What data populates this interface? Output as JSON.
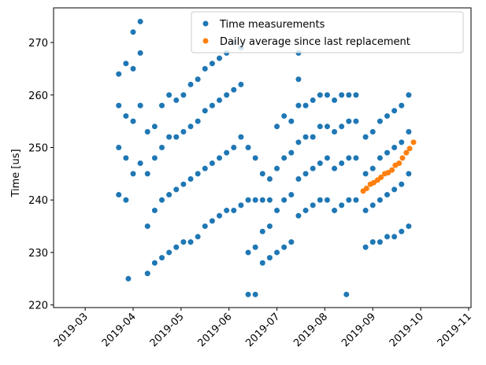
{
  "chart_data": {
    "type": "scatter",
    "y_label": "Time [us]",
    "xlim": [
      2.34,
      11.05
    ],
    "ylim": [
      219.5,
      276.6
    ],
    "xticks": [
      {
        "value": 3,
        "label": "2019-03"
      },
      {
        "value": 4,
        "label": "2019-04"
      },
      {
        "value": 5,
        "label": "2019-05"
      },
      {
        "value": 6,
        "label": "2019-06"
      },
      {
        "value": 7,
        "label": "2019-07"
      },
      {
        "value": 8,
        "label": "2019-08"
      },
      {
        "value": 9,
        "label": "2019-09"
      },
      {
        "value": 10,
        "label": "2019-10"
      },
      {
        "value": 11,
        "label": "2019-11"
      }
    ],
    "yticks": [
      220,
      230,
      240,
      250,
      260,
      270
    ],
    "legend": "upper right",
    "series": [
      {
        "name": "Time measurements",
        "color": "#1f77b4",
        "x": [
          3.7,
          3.7,
          3.7,
          3.7,
          3.85,
          3.85,
          3.85,
          3.85,
          4.0,
          4.0,
          4.0,
          4.0,
          4.15,
          4.15,
          4.15,
          4.15,
          4.3,
          4.3,
          4.3,
          4.3,
          4.45,
          4.45,
          4.45,
          4.45,
          4.6,
          4.6,
          4.6,
          4.6,
          4.75,
          4.75,
          4.75,
          4.75,
          4.9,
          4.9,
          4.9,
          4.9,
          5.05,
          5.05,
          5.05,
          5.05,
          5.2,
          5.2,
          5.2,
          5.2,
          5.35,
          5.35,
          5.35,
          5.35,
          5.5,
          5.5,
          5.5,
          5.5,
          5.65,
          5.65,
          5.65,
          5.65,
          5.8,
          5.8,
          5.8,
          5.8,
          5.95,
          5.95,
          5.95,
          5.95,
          6.1,
          6.1,
          6.1,
          6.1,
          6.25,
          6.25,
          6.25,
          6.25,
          6.4,
          6.4,
          6.4,
          6.4,
          6.55,
          6.55,
          6.55,
          6.55,
          6.7,
          6.7,
          6.7,
          6.7,
          6.85,
          6.85,
          6.85,
          6.85,
          7.0,
          7.0,
          7.0,
          7.0,
          7.15,
          7.15,
          7.15,
          7.15,
          7.3,
          7.3,
          7.3,
          7.3,
          7.45,
          7.45,
          7.45,
          7.45,
          7.6,
          7.6,
          7.6,
          7.6,
          7.75,
          7.75,
          7.75,
          7.75,
          7.9,
          7.9,
          7.9,
          7.9,
          8.05,
          8.05,
          8.05,
          8.05,
          8.2,
          8.2,
          8.2,
          8.2,
          8.35,
          8.35,
          8.35,
          8.35,
          8.5,
          8.5,
          8.5,
          8.5,
          8.65,
          8.65,
          8.65,
          8.65,
          8.85,
          8.85,
          8.85,
          8.85,
          9.0,
          9.0,
          9.0,
          9.0,
          9.15,
          9.15,
          9.15,
          9.15,
          9.3,
          9.3,
          9.3,
          9.3,
          9.45,
          9.45,
          9.45,
          9.45,
          9.6,
          9.6,
          9.6,
          9.6,
          9.75,
          9.75,
          9.75,
          9.75,
          3.9,
          7.45,
          7.45,
          8.45
        ],
        "values": [
          241,
          250,
          258,
          264,
          240,
          248,
          256,
          266,
          245,
          255,
          265,
          272,
          247,
          258,
          268,
          274,
          226,
          235,
          245,
          253,
          228,
          238,
          248,
          254,
          229,
          240,
          250,
          258,
          230,
          241,
          252,
          260,
          231,
          242,
          252,
          259,
          232,
          243,
          253,
          260,
          232,
          244,
          254,
          262,
          233,
          245,
          255,
          263,
          235,
          246,
          257,
          265,
          236,
          247,
          258,
          266,
          237,
          248,
          259,
          267,
          238,
          249,
          260,
          268,
          238,
          250,
          261,
          270,
          239,
          252,
          262,
          269,
          222,
          230,
          240,
          250,
          222,
          231,
          240,
          248,
          228,
          234,
          240,
          245,
          229,
          235,
          240,
          244,
          230,
          238,
          246,
          254,
          231,
          240,
          248,
          256,
          232,
          241,
          249,
          255,
          237,
          244,
          251,
          258,
          238,
          245,
          252,
          258,
          239,
          246,
          252,
          259,
          240,
          247,
          254,
          260,
          240,
          248,
          254,
          260,
          238,
          246,
          253,
          259,
          239,
          247,
          254,
          260,
          240,
          248,
          255,
          260,
          240,
          248,
          255,
          260,
          231,
          238,
          245,
          252,
          232,
          239,
          246,
          253,
          232,
          240,
          248,
          255,
          233,
          241,
          249,
          256,
          233,
          242,
          250,
          257,
          234,
          243,
          251,
          258,
          235,
          245,
          253,
          260,
          225,
          268,
          263,
          222
        ]
      },
      {
        "name": "Daily average since last replacement",
        "color": "#ff7f0e",
        "x": [
          8.8,
          8.87,
          8.95,
          9.02,
          9.1,
          9.17,
          9.25,
          9.32,
          9.4,
          9.47,
          9.55,
          9.62,
          9.7,
          9.77,
          9.85
        ],
        "values": [
          241.7,
          242.2,
          243,
          243.3,
          243.8,
          244.3,
          245,
          245.2,
          245.7,
          246.6,
          247,
          248,
          249,
          249.8,
          251
        ]
      }
    ]
  }
}
